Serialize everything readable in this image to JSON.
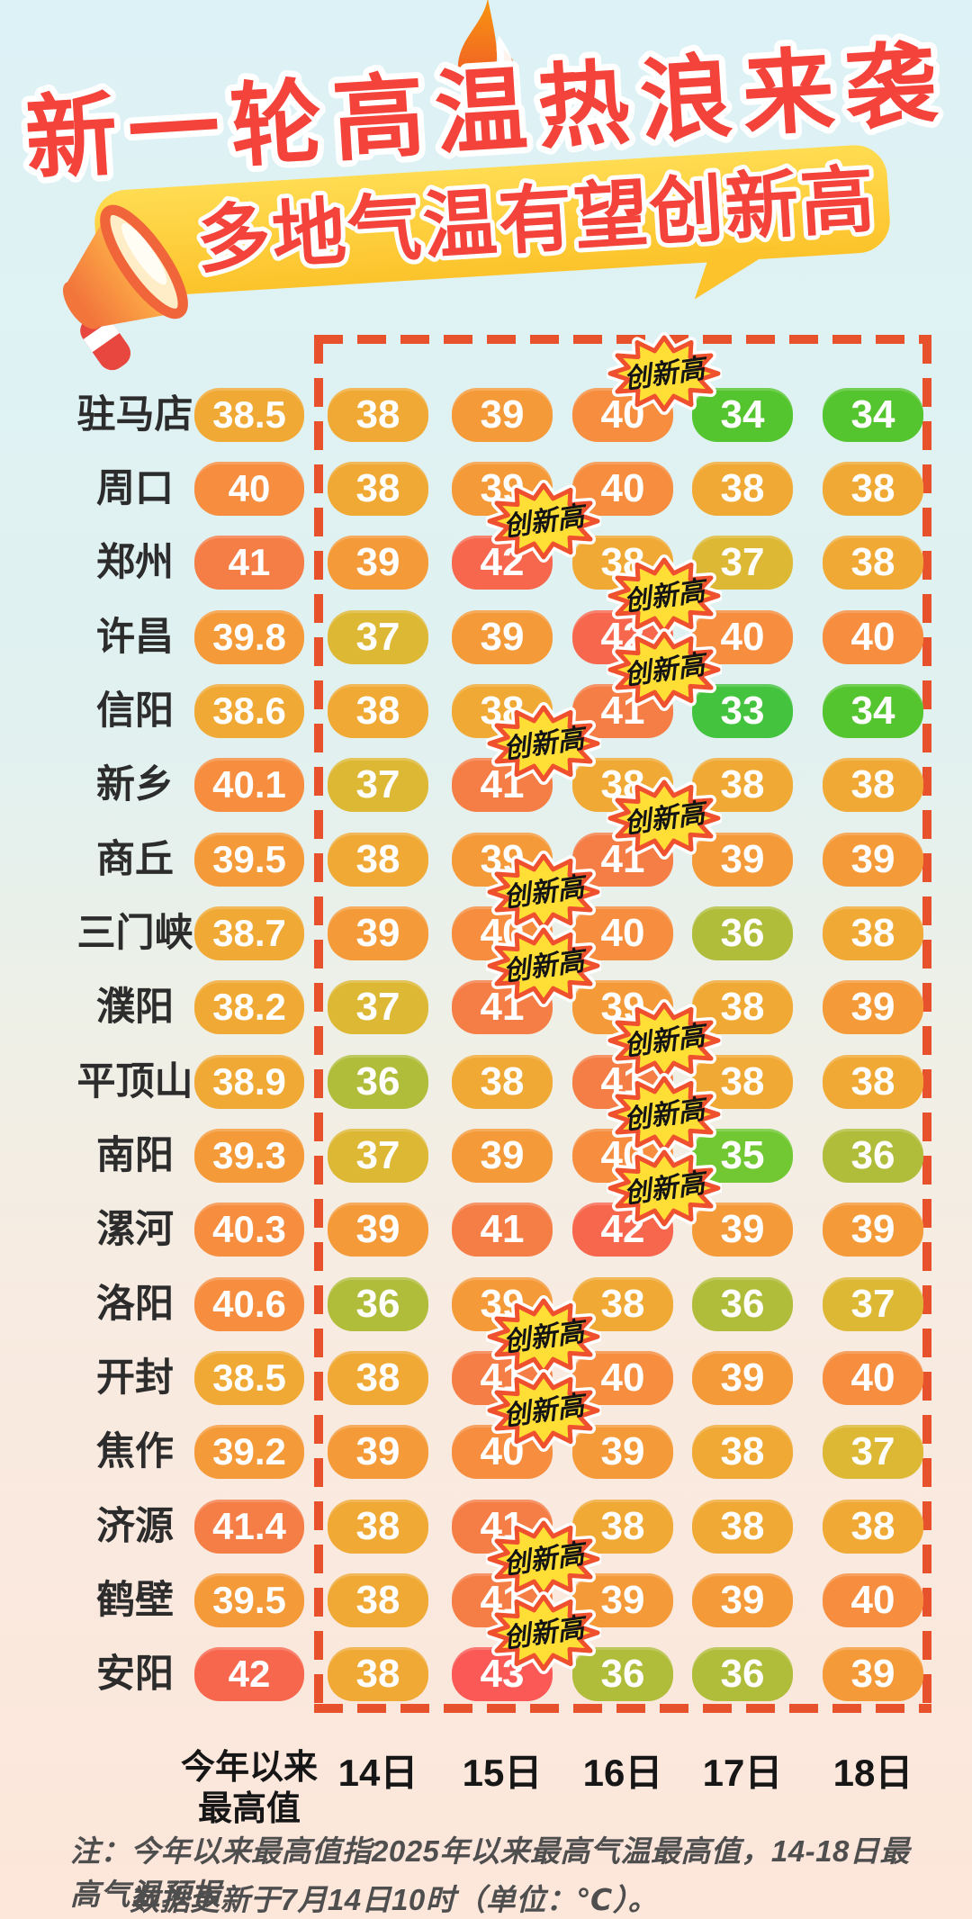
{
  "header": {
    "title": "新一轮高温热浪来袭",
    "subtitle": "多地气温有望创新高"
  },
  "table": {
    "corner_header": [
      "今年以来",
      "最高值"
    ],
    "day_headers": [
      "14日",
      "15日",
      "16日",
      "17日",
      "18日"
    ],
    "record_badge_label": "创新高",
    "rows": [
      {
        "city": "驻马店",
        "max": "38.5",
        "days": [
          38,
          39,
          40,
          34,
          34
        ],
        "badge_day": 2
      },
      {
        "city": "周口",
        "max": "40",
        "days": [
          38,
          39,
          40,
          38,
          38
        ],
        "badge_day": null
      },
      {
        "city": "郑州",
        "max": "41",
        "days": [
          39,
          42,
          38,
          37,
          38
        ],
        "badge_day": 1
      },
      {
        "city": "许昌",
        "max": "39.8",
        "days": [
          37,
          39,
          42,
          40,
          40
        ],
        "badge_day": 2
      },
      {
        "city": "信阳",
        "max": "38.6",
        "days": [
          38,
          38,
          41,
          33,
          34
        ],
        "badge_day": 2
      },
      {
        "city": "新乡",
        "max": "40.1",
        "days": [
          37,
          41,
          38,
          38,
          38
        ],
        "badge_day": 1
      },
      {
        "city": "商丘",
        "max": "39.5",
        "days": [
          38,
          39,
          41,
          39,
          39
        ],
        "badge_day": 2
      },
      {
        "city": "三门峡",
        "max": "38.7",
        "days": [
          39,
          40,
          40,
          36,
          38
        ],
        "badge_day": 1
      },
      {
        "city": "濮阳",
        "max": "38.2",
        "days": [
          37,
          41,
          39,
          38,
          39
        ],
        "badge_day": 1
      },
      {
        "city": "平顶山",
        "max": "38.9",
        "days": [
          36,
          38,
          41,
          38,
          38
        ],
        "badge_day": 2
      },
      {
        "city": "南阳",
        "max": "39.3",
        "days": [
          37,
          39,
          40,
          35,
          36
        ],
        "badge_day": 2
      },
      {
        "city": "漯河",
        "max": "40.3",
        "days": [
          39,
          41,
          42,
          39,
          39
        ],
        "badge_day": 2
      },
      {
        "city": "洛阳",
        "max": "40.6",
        "days": [
          36,
          39,
          38,
          36,
          37
        ],
        "badge_day": null
      },
      {
        "city": "开封",
        "max": "38.5",
        "days": [
          38,
          41,
          40,
          39,
          40
        ],
        "badge_day": 1
      },
      {
        "city": "焦作",
        "max": "39.2",
        "days": [
          39,
          40,
          39,
          38,
          37
        ],
        "badge_day": 1
      },
      {
        "city": "济源",
        "max": "41.4",
        "days": [
          38,
          41,
          38,
          38,
          38
        ],
        "badge_day": null
      },
      {
        "city": "鹤壁",
        "max": "39.5",
        "days": [
          38,
          41,
          39,
          39,
          40
        ],
        "badge_day": 1
      },
      {
        "city": "安阳",
        "max": "42",
        "days": [
          38,
          43,
          36,
          36,
          39
        ],
        "badge_day": 1
      }
    ]
  },
  "footnote": {
    "line1": "注：今年以来最高值指2025年以来最高气温最高值，14-18日最高气温预报",
    "line2": "数据更新于7月14日10时（单位：℃）。"
  },
  "colors": {
    "title_red": "#f4433b",
    "banner_yellow": "#fcc32b",
    "dash_red": "#e7512b",
    "badge_yellow": "#ffdf35",
    "badge_border": "#ef512e",
    "temp_scale": {
      "33": "#44c33e",
      "34": "#55c52f",
      "35": "#71c832",
      "36": "#b0bd3a",
      "37": "#ddb835",
      "38": "#f0a934",
      "39": "#f59a39",
      "40": "#f68d3f",
      "41": "#f57d46",
      "42": "#f7674d",
      "43": "#fa5956"
    }
  },
  "chart_data": {
    "type": "heatmap",
    "title": "新一轮高温热浪来袭",
    "subtitle": "多地气温有望创新高",
    "unit": "℃",
    "columns": [
      "今年以来最高值",
      "14日",
      "15日",
      "16日",
      "17日",
      "18日"
    ],
    "rows": [
      "驻马店",
      "周口",
      "郑州",
      "许昌",
      "信阳",
      "新乡",
      "商丘",
      "三门峡",
      "濮阳",
      "平顶山",
      "南阳",
      "漯河",
      "洛阳",
      "开封",
      "焦作",
      "济源",
      "鹤壁",
      "安阳"
    ],
    "values": [
      [
        38.5,
        38,
        39,
        40,
        34,
        34
      ],
      [
        40,
        38,
        39,
        40,
        38,
        38
      ],
      [
        41,
        39,
        42,
        38,
        37,
        38
      ],
      [
        39.8,
        37,
        39,
        42,
        40,
        40
      ],
      [
        38.6,
        38,
        38,
        41,
        33,
        34
      ],
      [
        40.1,
        37,
        41,
        38,
        38,
        38
      ],
      [
        39.5,
        38,
        39,
        41,
        39,
        39
      ],
      [
        38.7,
        39,
        40,
        40,
        36,
        38
      ],
      [
        38.2,
        37,
        41,
        39,
        38,
        39
      ],
      [
        38.9,
        36,
        38,
        41,
        38,
        38
      ],
      [
        39.3,
        37,
        39,
        40,
        35,
        36
      ],
      [
        40.3,
        39,
        41,
        42,
        39,
        39
      ],
      [
        40.6,
        36,
        39,
        38,
        36,
        37
      ],
      [
        38.5,
        38,
        41,
        40,
        39,
        40
      ],
      [
        39.2,
        39,
        40,
        39,
        38,
        37
      ],
      [
        41.4,
        38,
        41,
        38,
        38,
        38
      ],
      [
        39.5,
        38,
        41,
        39,
        39,
        40
      ],
      [
        42,
        38,
        43,
        36,
        36,
        39
      ]
    ],
    "record_high_cells": [
      {
        "city": "驻马店",
        "day": "16日",
        "value": 40
      },
      {
        "city": "郑州",
        "day": "15日",
        "value": 42
      },
      {
        "city": "许昌",
        "day": "16日",
        "value": 42
      },
      {
        "city": "信阳",
        "day": "16日",
        "value": 41
      },
      {
        "city": "新乡",
        "day": "15日",
        "value": 41
      },
      {
        "city": "商丘",
        "day": "16日",
        "value": 41
      },
      {
        "city": "三门峡",
        "day": "15日",
        "value": 40
      },
      {
        "city": "濮阳",
        "day": "15日",
        "value": 41
      },
      {
        "city": "平顶山",
        "day": "16日",
        "value": 41
      },
      {
        "city": "南阳",
        "day": "16日",
        "value": 40
      },
      {
        "city": "漯河",
        "day": "16日",
        "value": 42
      },
      {
        "city": "开封",
        "day": "15日",
        "value": 41
      },
      {
        "city": "焦作",
        "day": "15日",
        "value": 40
      },
      {
        "city": "鹤壁",
        "day": "15日",
        "value": 41
      },
      {
        "city": "安阳",
        "day": "15日",
        "value": 43
      }
    ],
    "legend_position": "none",
    "grid": false
  }
}
